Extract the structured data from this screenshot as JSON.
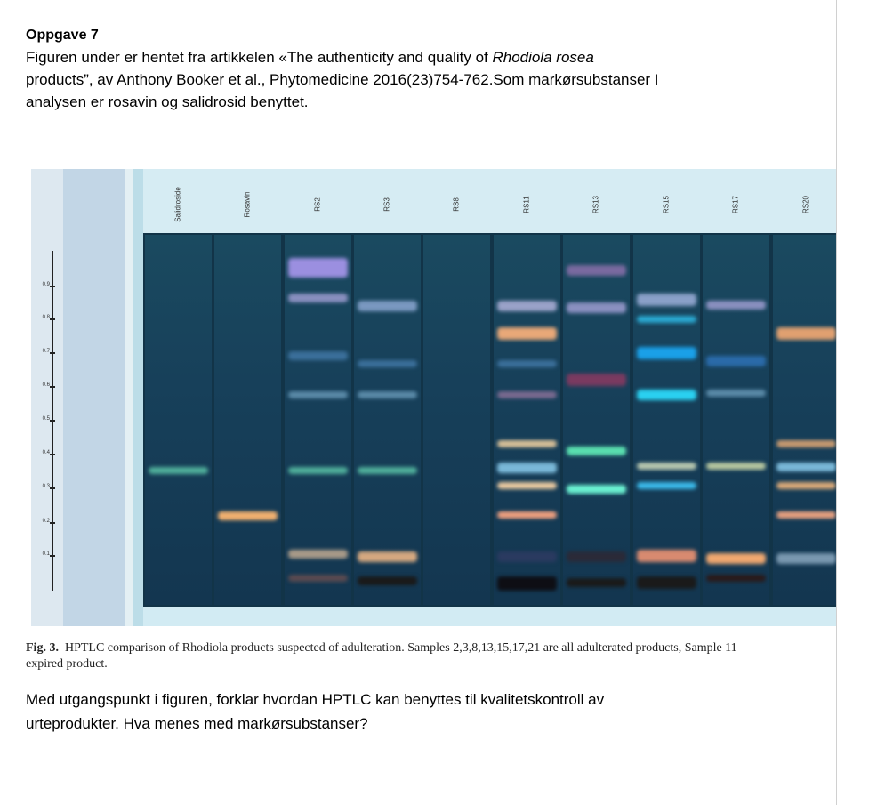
{
  "heading": "Oppgave 7",
  "intro": {
    "l1_before": "Figuren under er hentet fra artikkelen «The authenticity and quality of ",
    "l1_italic": "Rhodiola rosea",
    "l2": "products”, av Anthony Booker et al., Phytomedicine 2016(23)754-762.Som markørsubstanser I",
    "l3": "analysen er rosavin og salidrosid benyttet."
  },
  "figure": {
    "lanes": [
      "Salidroside",
      "Rosavin",
      "RS2",
      "RS3",
      "RS8",
      "RS11",
      "RS13",
      "RS15",
      "RS17",
      "RS20"
    ],
    "y_ticks": [
      "0.9",
      "0.8",
      "0.7",
      "0.6",
      "0.5",
      "0.4",
      "0.3",
      "0.2",
      "0.1"
    ]
  },
  "caption": {
    "fig_label": "Fig. 3.",
    "text_l1": "HPTLC comparison of Rhodiola products suspected of adulteration. Samples 2,3,8,13,15,17,21 are all adulterated products, Sample 11",
    "text_l2": "expired product."
  },
  "question": {
    "l1": "Med utgangspunkt i figuren, forklar hvordan HPTLC kan benyttes til kvalitetskontroll av",
    "l2": "urteprodukter. Hva menes med markørsubstanser?"
  }
}
